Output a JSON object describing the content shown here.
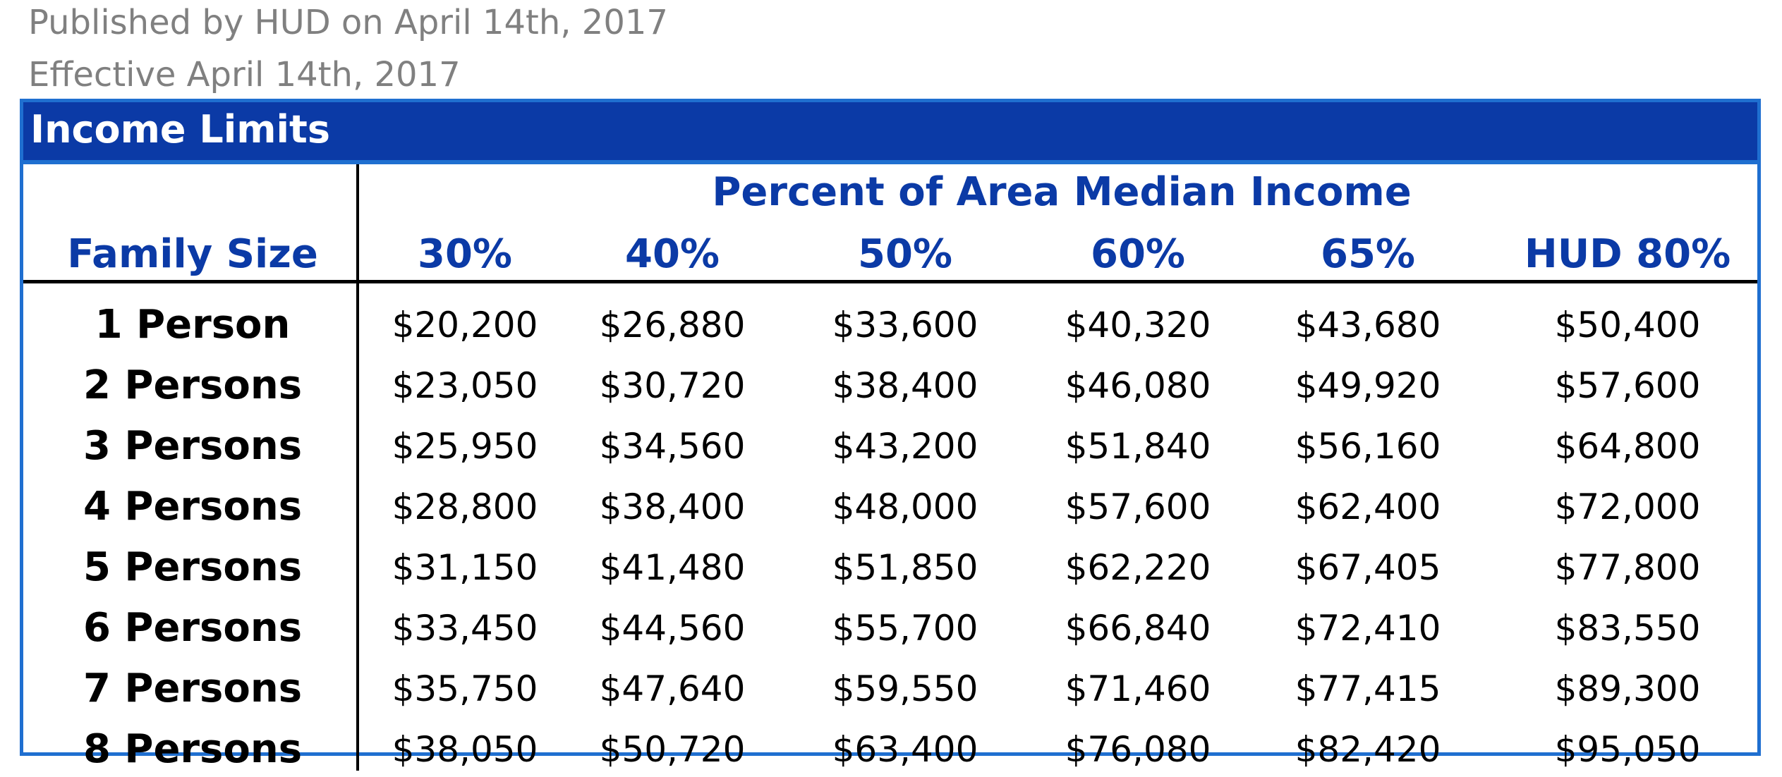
{
  "meta": {
    "published": "Published by HUD on April 14th, 2017",
    "effective": "Effective April 14th, 2017"
  },
  "table": {
    "title": "Income Limits",
    "percent_header": "Percent of Area Median Income",
    "row_header": "Family Size",
    "columns": [
      "30%",
      "40%",
      "50%",
      "60%",
      "65%",
      "HUD 80%"
    ],
    "rows": [
      {
        "label": "1 Person",
        "values": [
          "$20,200",
          "$26,880",
          "$33,600",
          "$40,320",
          "$43,680",
          "$50,400"
        ]
      },
      {
        "label": "2 Persons",
        "values": [
          "$23,050",
          "$30,720",
          "$38,400",
          "$46,080",
          "$49,920",
          "$57,600"
        ]
      },
      {
        "label": "3 Persons",
        "values": [
          "$25,950",
          "$34,560",
          "$43,200",
          "$51,840",
          "$56,160",
          "$64,800"
        ]
      },
      {
        "label": "4 Persons",
        "values": [
          "$28,800",
          "$38,400",
          "$48,000",
          "$57,600",
          "$62,400",
          "$72,000"
        ]
      },
      {
        "label": "5 Persons",
        "values": [
          "$31,150",
          "$41,480",
          "$51,850",
          "$62,220",
          "$67,405",
          "$77,800"
        ]
      },
      {
        "label": "6 Persons",
        "values": [
          "$33,450",
          "$44,560",
          "$55,700",
          "$66,840",
          "$72,410",
          "$83,550"
        ]
      },
      {
        "label": "7 Persons",
        "values": [
          "$35,750",
          "$47,640",
          "$59,550",
          "$71,460",
          "$77,415",
          "$89,300"
        ]
      },
      {
        "label": "8 Persons",
        "values": [
          "$38,050",
          "$50,720",
          "$63,400",
          "$76,080",
          "$82,420",
          "$95,050"
        ]
      }
    ]
  }
}
